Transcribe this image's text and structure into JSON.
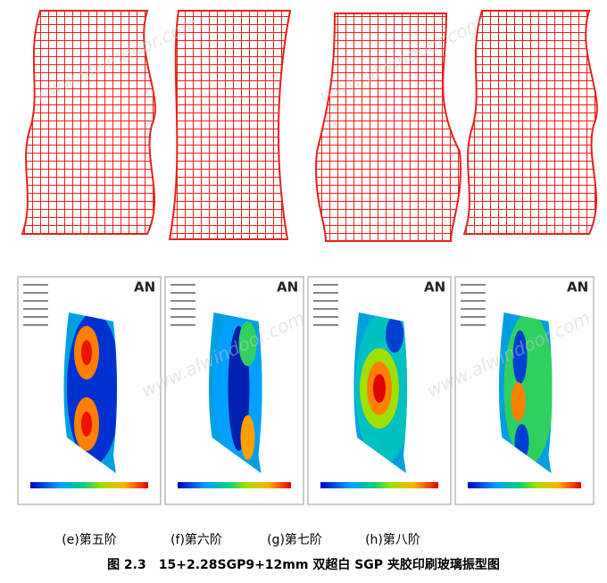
{
  "subfigures": [
    {
      "label": "(e)第五阶"
    },
    {
      "label": "(f)第六阶"
    },
    {
      "label": "(g)第七阶"
    },
    {
      "label": "(h)第八阶"
    }
  ],
  "logo": "AN",
  "caption": "图 2.3　15+2.28SGP9+12mm 双超白 SGP 夹胶印刷玻璃振型图",
  "watermark": "www.alwindoor.com"
}
